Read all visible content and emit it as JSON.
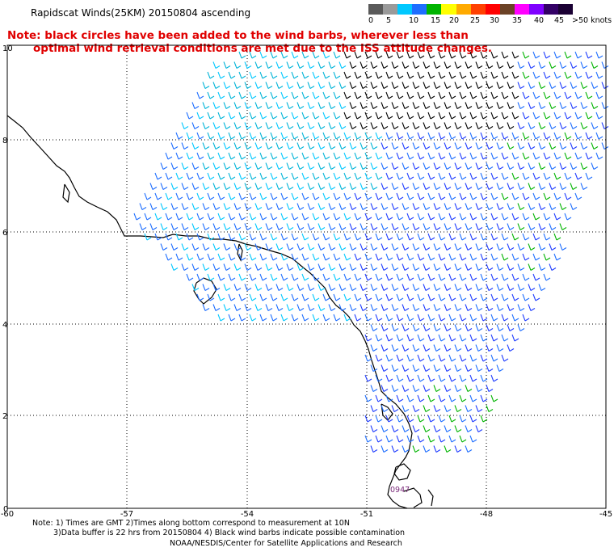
{
  "title": "Rapidscat Winds(25KM) 20150804 ascending",
  "note": {
    "line1": "Note: black circles have been added to the wind barbs, wherever less than",
    "line2": "optimal wind retrieval conditions are met due to the ISS attitude changes."
  },
  "legend": {
    "labels": [
      "0",
      "5",
      "10",
      "15",
      "20",
      "25",
      "30",
      "35",
      "40",
      "45",
      ">50 knots"
    ],
    "colors": [
      "#5a5a5a",
      "#9a9a9a",
      "#00c8ff",
      "#1e6eff",
      "#00b400",
      "#ffff00",
      "#ffaa00",
      "#ff4000",
      "#ff0000",
      "#6b4226",
      "#ff00ff",
      "#7f00ff",
      "#330066",
      "#1a0033"
    ]
  },
  "axes": {
    "x_ticks": [
      "-60",
      "-57",
      "-54",
      "-51",
      "-48",
      "-45"
    ],
    "y_ticks": [
      "0",
      "2",
      "4",
      "6",
      "8",
      "10"
    ]
  },
  "annotation": "0947",
  "footer": {
    "line1": "Note: 1) Times are GMT 2)Times along bottom correspond to measurement at 10N",
    "line2": "3)Data buffer is 22 hrs from 20150804 4) Black wind barbs indicate possible contamination",
    "line3": "NOAA/NESDIS/Center for Satellite Applications and Research"
  }
}
